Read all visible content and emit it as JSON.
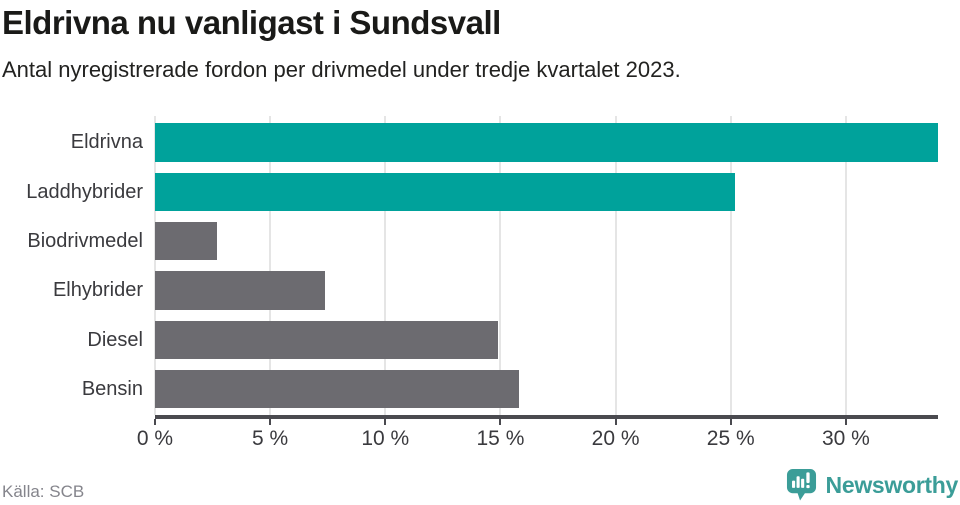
{
  "header": {
    "title": "Eldrivna nu vanligast i Sundsvall",
    "subtitle": "Antal nyregistrerade fordon per drivmedel under tredje kvartalet 2023."
  },
  "chart_data": {
    "type": "bar",
    "orientation": "horizontal",
    "title": "Eldrivna nu vanligast i Sundsvall",
    "subtitle": "Antal nyregistrerade fordon per drivmedel under tredje kvartalet 2023.",
    "categories": [
      "Eldrivna",
      "Laddhybrider",
      "Biodrivmedel",
      "Elhybrider",
      "Diesel",
      "Bensin"
    ],
    "values": [
      34.0,
      25.2,
      2.7,
      7.4,
      14.9,
      15.8
    ],
    "unit": "%",
    "xlim": [
      0,
      34
    ],
    "xticks": [
      0,
      5,
      10,
      15,
      20,
      25,
      30
    ],
    "xtick_labels": [
      "0 %",
      "5 %",
      "10 %",
      "15 %",
      "20 %",
      "25 %",
      "30 %"
    ],
    "grid": true,
    "legend": "none",
    "bar_colors": [
      "#00a29b",
      "#00a29b",
      "#6c6b70",
      "#6c6b70",
      "#6c6b70",
      "#6c6b70"
    ],
    "highlight_color": "#00a29b",
    "base_color": "#6c6b70",
    "gridline_color": "#e5e5e5",
    "axis_color": "#4a4a4f"
  },
  "footer": {
    "source": "Källa: SCB",
    "brand_name": "Newsworthy",
    "brand_color": "#3b9d98"
  },
  "icons": {
    "brand_logo": "newsworthy-bar-chart-bubble-icon"
  }
}
